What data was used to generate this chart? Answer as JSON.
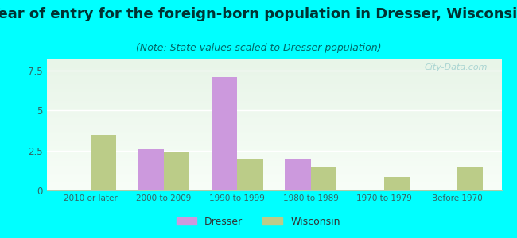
{
  "title": "Year of entry for the foreign-born population in Dresser, Wisconsin",
  "subtitle": "(Note: State values scaled to Dresser population)",
  "categories": [
    "2010 or later",
    "2000 to 2009",
    "1990 to 1999",
    "1980 to 1989",
    "1970 to 1979",
    "Before 1970"
  ],
  "dresser_values": [
    0,
    2.6,
    7.1,
    2.0,
    0,
    0
  ],
  "wisconsin_values": [
    3.5,
    2.45,
    2.0,
    1.45,
    0.85,
    1.45
  ],
  "dresser_color": "#cc99dd",
  "wisconsin_color": "#bbcc88",
  "ylim": [
    0,
    8.2
  ],
  "yticks": [
    0,
    2.5,
    5,
    7.5
  ],
  "background_outer": "#00ffff",
  "title_fontsize": 13,
  "subtitle_fontsize": 9,
  "bar_width": 0.35,
  "watermark": "City-Data.com",
  "title_color": "#003333",
  "subtitle_color": "#006666",
  "tick_color": "#336666",
  "legend_color": "#333333"
}
